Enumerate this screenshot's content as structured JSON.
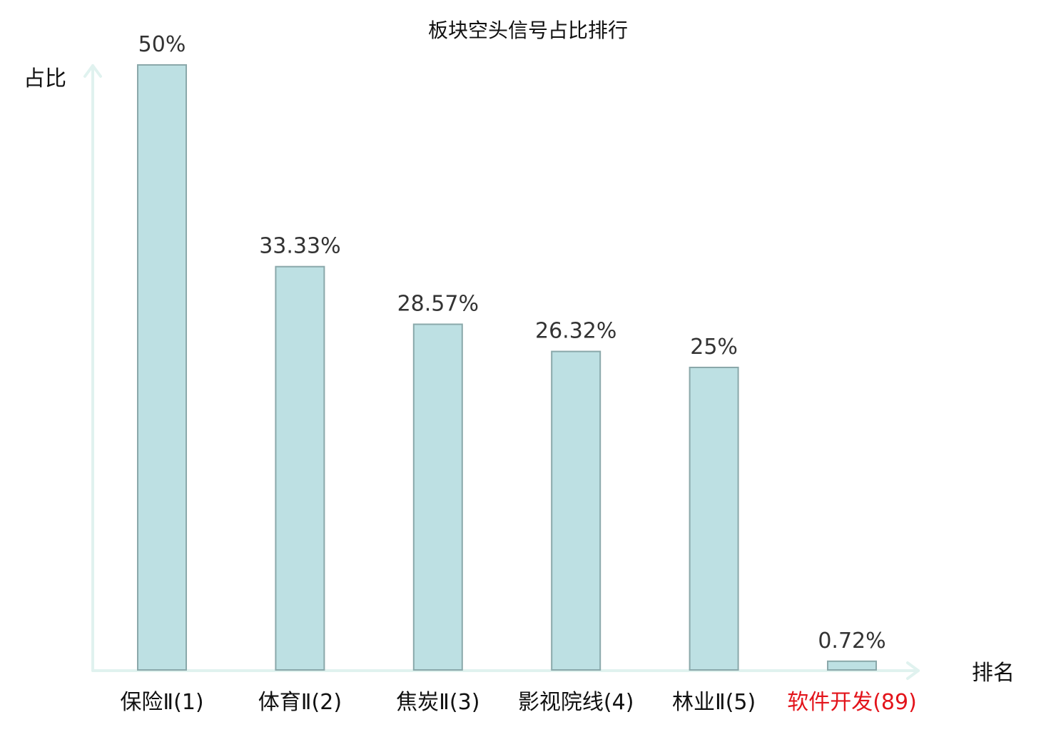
{
  "chart_data": {
    "type": "bar",
    "title": "板块空头信号占比排行",
    "xlabel": "排名",
    "ylabel": "占比",
    "categories": [
      "保险Ⅱ(1)",
      "体育Ⅱ(2)",
      "焦炭Ⅱ(3)",
      "影视院线(4)",
      "林业Ⅱ(5)",
      "软件开发(89)"
    ],
    "values": [
      50,
      33.33,
      28.57,
      26.32,
      25,
      0.72
    ],
    "value_labels": [
      "50%",
      "33.33%",
      "28.57%",
      "26.32%",
      "25%",
      "0.72%"
    ],
    "highlight_index": 5,
    "ylim": [
      0,
      50
    ],
    "grid": false,
    "legend": "none",
    "colors": {
      "bar_fill": "#bde0e3",
      "bar_stroke": "#8aa8aa",
      "axis": "#e0f2ef",
      "category_text": "#111111",
      "highlight_text": "#e3141b"
    }
  }
}
